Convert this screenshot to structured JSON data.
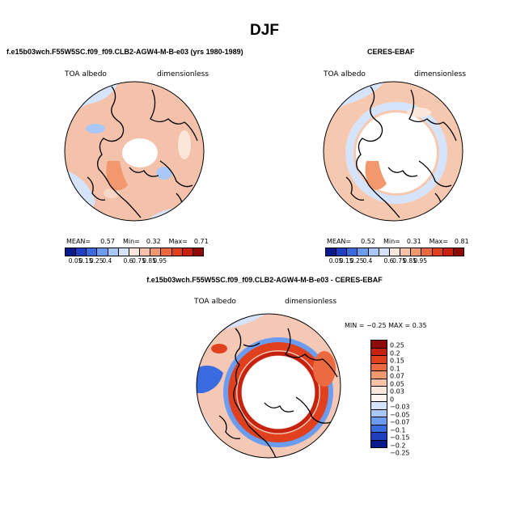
{
  "page": {
    "title": "DJF",
    "left_panel_title": "f.e15b03wch.F55W5SC.f09_f09.CLB2-AGW4-M-B-e03 (yrs 1980-1989)",
    "right_panel_title": "CERES-EBAF",
    "diff_panel_title": "f.e15b03wch.F55W5SC.f09_f09.CLB2-AGW4-M-B-e03 - CERES-EBAF"
  },
  "maps": [
    {
      "field": "TOA albedo",
      "units": "dimensionless",
      "mean_label": "MEAN=",
      "mean": "0.57",
      "min_label": "Min=",
      "min": "0.32",
      "max_label": "Max=",
      "max": "0.71"
    },
    {
      "field": "TOA albedo",
      "units": "dimensionless",
      "mean_label": "MEAN=",
      "mean": "0.52",
      "min_label": "Min=",
      "min": "0.31",
      "max_label": "Max=",
      "max": "0.81"
    },
    {
      "field": "TOA albedo",
      "units": "dimensionless",
      "minmax_text": "MIN = −0.25 MAX =   0.35"
    }
  ],
  "colorbar_abs": {
    "ticks": [
      "0.05",
      "0.15",
      "0.25",
      "0.4",
      "0.6",
      "0.75",
      "0.85",
      "0.95"
    ],
    "colors": [
      "#0a1a8c",
      "#1f3fbf",
      "#3a6ae0",
      "#6b9cf0",
      "#a9c7f7",
      "#d6e4fb",
      "#fbe6dc",
      "#f7c2a8",
      "#f2986f",
      "#ec6a40",
      "#e0401e",
      "#c72210",
      "#8f0a04"
    ]
  },
  "colorbar_diff": {
    "labels": [
      "0.25",
      "0.2",
      "0.15",
      "0.1",
      "0.07",
      "0.05",
      "0.03",
      "0",
      "−0.03",
      "−0.05",
      "−0.07",
      "−0.1",
      "−0.15",
      "−0.2",
      "−0.25"
    ],
    "colors": [
      "#8f0a04",
      "#c72210",
      "#e0401e",
      "#ec6a40",
      "#f2986f",
      "#f7c2a8",
      "#fbe6dc",
      "#fdf3ef",
      "#d6e4fb",
      "#a9c7f7",
      "#6b9cf0",
      "#3a6ae0",
      "#1f3fbf",
      "#0a1a8c"
    ]
  }
}
